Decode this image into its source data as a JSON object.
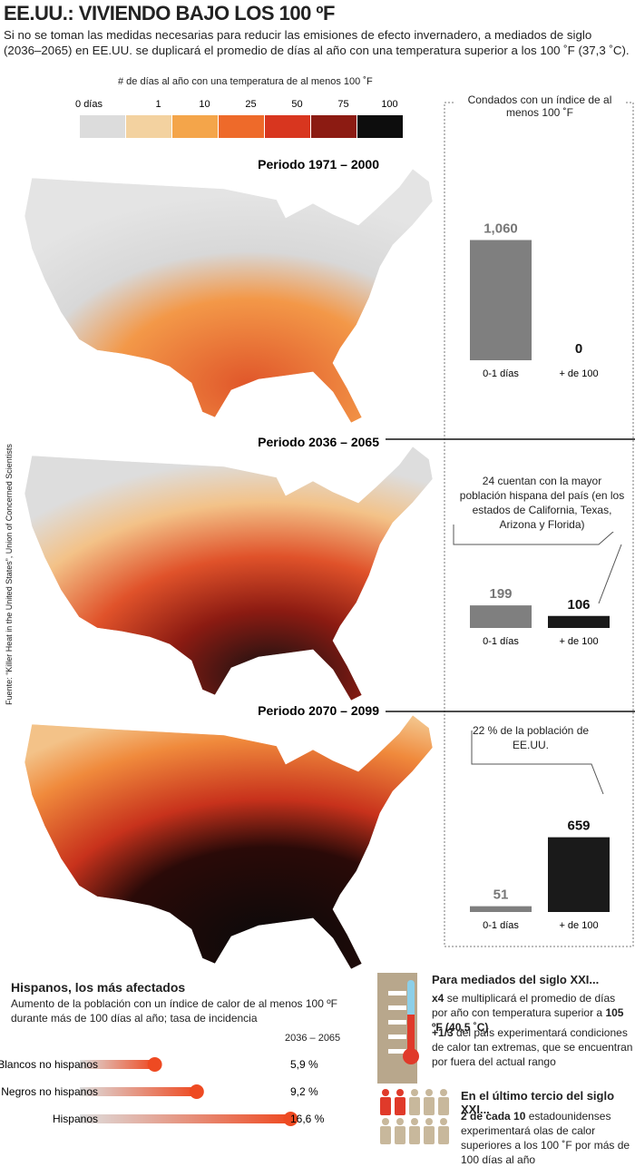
{
  "header": {
    "title": "EE.UU.: VIVIENDO BAJO LOS 100 ºF",
    "subtitle": "Si no se toman las medidas necesarias para reducir las emisiones de efecto invernadero, a mediados de siglo (2036–2065) en EE.UU. se duplicará el promedio de días al año con una temperatura superior a los 100 ˚F (37,3 ˚C)."
  },
  "legend": {
    "title": "# de días al año con una temperatura de al menos 100 ˚F",
    "labels": [
      "0 días",
      "1",
      "10",
      "25",
      "50",
      "75",
      "100"
    ],
    "colors": [
      "#dcdcdc",
      "#f3d2a0",
      "#f4a54a",
      "#ee6a2a",
      "#d8361f",
      "#8c1b12",
      "#0d0d0d"
    ]
  },
  "maps": [
    {
      "title": "Periodo 1971 – 2000"
    },
    {
      "title": "Periodo 2036 – 2065"
    },
    {
      "title": "Periodo 2070 – 2099"
    }
  ],
  "source": "Fuente: “Killer Heat in the United States”, Union of Concerned Scientists",
  "counties": {
    "title": "Condados con un índice de al menos 100 ˚F",
    "categories": [
      "0-1 días",
      "+ de 100"
    ],
    "colors": [
      "#7f7f7f",
      "#1a1a1a"
    ],
    "periods": [
      {
        "values": [
          1060,
          0
        ],
        "value_labels": [
          "1,060",
          "0"
        ]
      },
      {
        "values": [
          199,
          106
        ]
      },
      {
        "values": [
          51,
          659
        ]
      }
    ],
    "notes": [
      "24 cuentan con la mayor población hispana del país (en los estados de California, Texas, Arizona y Florida)",
      "22 % de la población de EE.UU."
    ]
  },
  "hispanics": {
    "title": "Hispanos, los más afectados",
    "subtitle": "Aumento de la población con un índice de calor de al menos 100 ºF durante más de 100 días al año; tasa de incidencia",
    "period": "2036 – 2065",
    "categories": [
      "Blancos no hispanos",
      "Negros no hispanos",
      "Hispanos"
    ],
    "values": [
      5.9,
      9.2,
      16.6
    ],
    "value_labels": [
      "5,9 %",
      "9,2 %",
      "16,6 %"
    ],
    "color": "#ee4a22"
  },
  "facts": [
    {
      "title": "Para mediados del siglo XXI...",
      "items": [
        [
          "x4",
          " se multiplicará el promedio de días por año con temperatura superior a ",
          "105 ºF (40,5 ˚C)"
        ],
        [
          "+1/3",
          " del país experimentará condiciones de calor tan extremas, que se encuentran  por fuera del actual rango"
        ]
      ]
    },
    {
      "title": "En el último tercio del siglo XXI...",
      "items": [
        [
          "2 de cada 10",
          " estadounidenses experimentará olas de calor superiores a los 100 ˚F por más de 100 días al año"
        ]
      ]
    }
  ]
}
